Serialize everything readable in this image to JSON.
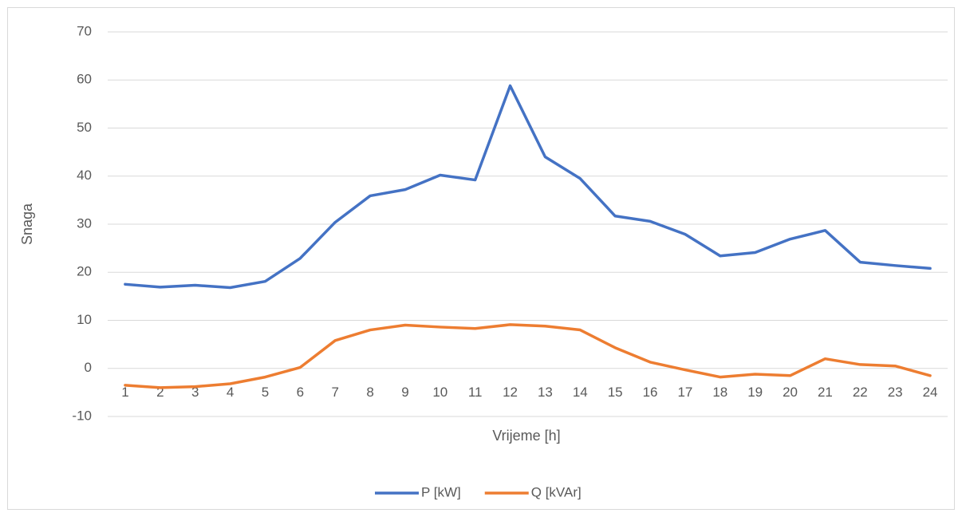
{
  "chart_data": {
    "type": "line",
    "x_label": "Vrijeme [h]",
    "y_label": "Snaga",
    "categories": [
      "1",
      "2",
      "3",
      "4",
      "5",
      "6",
      "7",
      "8",
      "9",
      "10",
      "11",
      "12",
      "13",
      "14",
      "15",
      "16",
      "17",
      "18",
      "19",
      "20",
      "21",
      "22",
      "23",
      "24"
    ],
    "series": [
      {
        "name": "P [kW]",
        "color": "#4472c4",
        "values": [
          17.5,
          16.9,
          17.3,
          16.8,
          18.1,
          22.9,
          30.4,
          35.9,
          37.2,
          40.2,
          39.2,
          58.8,
          44,
          39.5,
          31.7,
          30.6,
          27.9,
          23.4,
          24.1,
          26.9,
          28.7,
          22.1,
          21.4,
          20.8
        ]
      },
      {
        "name": "Q [kVAr]",
        "color": "#ed7d31",
        "values": [
          -3.5,
          -4,
          -3.8,
          -3.2,
          -1.8,
          0.2,
          5.8,
          8,
          9,
          8.6,
          8.3,
          9.1,
          8.8,
          8,
          4.3,
          1.3,
          -0.3,
          -1.8,
          -1.2,
          -1.5,
          2,
          0.8,
          0.5,
          -1.5
        ]
      }
    ],
    "ylim": [
      -10,
      70
    ],
    "yticks": [
      -10,
      0,
      10,
      20,
      30,
      40,
      50,
      60,
      70
    ],
    "grid": true,
    "legend": "bottom"
  }
}
